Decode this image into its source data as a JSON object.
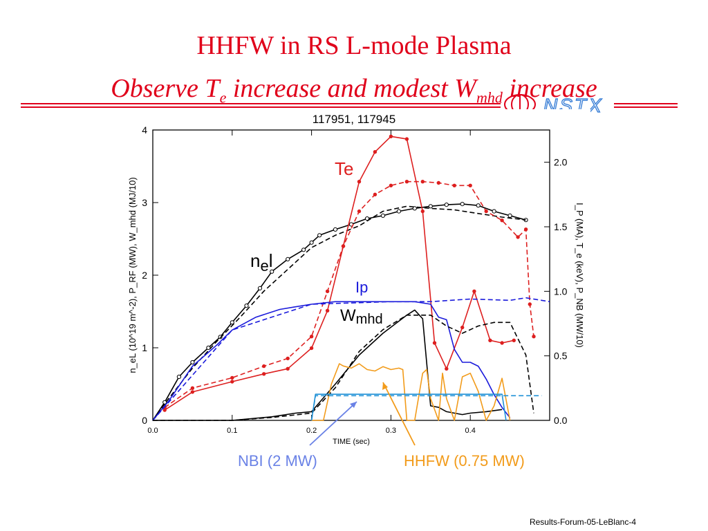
{
  "slide": {
    "title": "HHFW in RS L-mode Plasma",
    "subtitle_main": "Observe T",
    "subtitle_sub_e": "e",
    "subtitle_mid": " increase and modest W",
    "subtitle_sub_mhd": "mhd",
    "subtitle_end": " increase",
    "footer": "Results-Forum-05-LeBlanc-4",
    "logo_text": "NSTX"
  },
  "colors": {
    "title": "#e0001a",
    "ne": "#000000",
    "te": "#dd1f1f",
    "ip": "#1a1adb",
    "wmhd": "#000000",
    "hhfw": "#f29b1a",
    "nbi": "#1e90d6",
    "logo": "#3a7fd6"
  },
  "chart_data": {
    "type": "line",
    "title": "117951, 117945",
    "xlabel": "TIME (sec)",
    "xlim": [
      0.0,
      0.5
    ],
    "x_ticks": [
      "0.0",
      "0.1",
      "0.2",
      "0.3",
      "0.4"
    ],
    "left_ylim": [
      0,
      4
    ],
    "left_ticks": [
      "0",
      "1",
      "2",
      "3",
      "4"
    ],
    "left_ylabel": "n_eL (10^19 m^-2), P_RF (MW), W_mhd (MJ/10)",
    "right_ylim": [
      0.0,
      2.25
    ],
    "right_ticks": [
      "0.0",
      "0.5",
      "1.0",
      "1.5",
      "2.0"
    ],
    "right_ylabel": "I_P (MA), T_e (keV), P_NB (MW/10)",
    "grid": false,
    "labels": {
      "te": "Te",
      "ne_main": "n",
      "ne_sub": "e",
      "ne_end": "l",
      "ip": "Ip",
      "wmhd_main": "W",
      "wmhd_sub": "mhd",
      "nbi": "NBI (2 MW)",
      "hhfw": "HHFW (0.75 MW)"
    },
    "series": [
      {
        "name": "ne l (117951)",
        "axis": "left",
        "color": "#000000",
        "dash": false,
        "markers": "open-circle",
        "x": [
          0.0,
          0.015,
          0.033,
          0.05,
          0.07,
          0.085,
          0.1,
          0.118,
          0.135,
          0.15,
          0.17,
          0.19,
          0.2,
          0.21,
          0.23,
          0.25,
          0.27,
          0.29,
          0.31,
          0.33,
          0.35,
          0.37,
          0.39,
          0.41,
          0.43,
          0.45,
          0.47
        ],
        "y": [
          0.0,
          0.25,
          0.6,
          0.8,
          1.0,
          1.15,
          1.35,
          1.58,
          1.82,
          2.05,
          2.22,
          2.35,
          2.45,
          2.55,
          2.63,
          2.7,
          2.78,
          2.82,
          2.88,
          2.92,
          2.95,
          2.97,
          2.98,
          2.96,
          2.88,
          2.82,
          2.76
        ]
      },
      {
        "name": "ne l (117945)",
        "axis": "left",
        "color": "#000000",
        "dash": true,
        "markers": "none",
        "x": [
          0.0,
          0.02,
          0.05,
          0.08,
          0.11,
          0.14,
          0.17,
          0.2,
          0.23,
          0.26,
          0.29,
          0.32,
          0.35,
          0.38,
          0.41,
          0.44,
          0.47
        ],
        "y": [
          0.0,
          0.3,
          0.72,
          1.08,
          1.42,
          1.78,
          2.08,
          2.38,
          2.55,
          2.68,
          2.88,
          2.95,
          2.92,
          2.9,
          2.85,
          2.8,
          2.76
        ]
      },
      {
        "name": "Te (117951)",
        "axis": "right",
        "color": "#dd1f1f",
        "dash": false,
        "markers": "filled-dot",
        "x": [
          0.015,
          0.05,
          0.1,
          0.14,
          0.17,
          0.2,
          0.22,
          0.24,
          0.26,
          0.28,
          0.3,
          0.32,
          0.34,
          0.355,
          0.37,
          0.39,
          0.405,
          0.425,
          0.44,
          0.455
        ],
        "y": [
          0.08,
          0.22,
          0.3,
          0.36,
          0.4,
          0.56,
          0.85,
          1.35,
          1.85,
          2.08,
          2.2,
          2.18,
          1.62,
          0.6,
          0.4,
          0.72,
          1.0,
          0.62,
          0.6,
          0.62
        ]
      },
      {
        "name": "Te (117945)",
        "axis": "right",
        "color": "#dd1f1f",
        "dash": true,
        "markers": "filled-dot",
        "x": [
          0.015,
          0.05,
          0.1,
          0.14,
          0.17,
          0.2,
          0.22,
          0.24,
          0.26,
          0.28,
          0.3,
          0.32,
          0.34,
          0.36,
          0.38,
          0.4,
          0.42,
          0.44,
          0.46,
          0.47,
          0.475,
          0.48
        ],
        "y": [
          0.1,
          0.25,
          0.33,
          0.42,
          0.48,
          0.65,
          1.0,
          1.35,
          1.62,
          1.75,
          1.82,
          1.85,
          1.85,
          1.84,
          1.82,
          1.82,
          1.62,
          1.55,
          1.42,
          1.48,
          0.9,
          0.65
        ]
      },
      {
        "name": "Ip (117951)",
        "axis": "right",
        "color": "#1a1adb",
        "dash": false,
        "markers": "none",
        "x": [
          0.0,
          0.02,
          0.05,
          0.08,
          0.1,
          0.13,
          0.16,
          0.18,
          0.2,
          0.23,
          0.26,
          0.3,
          0.33,
          0.35,
          0.36,
          0.37,
          0.38,
          0.39,
          0.4,
          0.41,
          0.42,
          0.43,
          0.44,
          0.45
        ],
        "y": [
          0.0,
          0.15,
          0.42,
          0.58,
          0.7,
          0.8,
          0.86,
          0.88,
          0.9,
          0.92,
          0.92,
          0.92,
          0.92,
          0.9,
          0.8,
          0.78,
          0.55,
          0.45,
          0.45,
          0.42,
          0.32,
          0.2,
          0.1,
          0.02
        ]
      },
      {
        "name": "Ip (117945)",
        "axis": "right",
        "color": "#1a1adb",
        "dash": true,
        "markers": "none",
        "x": [
          0.0,
          0.1,
          0.2,
          0.3,
          0.35,
          0.4,
          0.45,
          0.47,
          0.5
        ],
        "y": [
          0.0,
          0.7,
          0.9,
          0.92,
          0.92,
          0.94,
          0.93,
          0.95,
          0.92
        ]
      },
      {
        "name": "Wmhd (117951)",
        "axis": "left",
        "color": "#000000",
        "dash": false,
        "markers": "none",
        "x": [
          0.0,
          0.05,
          0.1,
          0.15,
          0.18,
          0.2,
          0.23,
          0.26,
          0.29,
          0.32,
          0.33,
          0.34,
          0.35,
          0.36,
          0.37,
          0.38,
          0.39,
          0.4,
          0.42,
          0.44
        ],
        "y": [
          0.0,
          0.0,
          0.0,
          0.05,
          0.1,
          0.12,
          0.5,
          0.9,
          1.2,
          1.45,
          1.52,
          1.4,
          0.2,
          0.18,
          0.12,
          0.1,
          0.08,
          0.1,
          0.12,
          0.15
        ]
      },
      {
        "name": "Wmhd (117945)",
        "axis": "left",
        "color": "#000000",
        "dash": true,
        "markers": "none",
        "x": [
          0.0,
          0.1,
          0.15,
          0.2,
          0.23,
          0.26,
          0.29,
          0.32,
          0.35,
          0.37,
          0.39,
          0.41,
          0.43,
          0.45,
          0.47,
          0.48
        ],
        "y": [
          0.0,
          0.0,
          0.04,
          0.1,
          0.45,
          0.95,
          1.25,
          1.45,
          1.45,
          1.3,
          1.2,
          1.3,
          1.35,
          1.35,
          0.9,
          0.1
        ]
      },
      {
        "name": "HHFW (117951)",
        "axis": "left",
        "color": "#f29b1a",
        "dash": false,
        "markers": "none",
        "x": [
          0.2,
          0.215,
          0.225,
          0.235,
          0.24,
          0.25,
          0.26,
          0.27,
          0.28,
          0.29,
          0.3,
          0.31,
          0.315,
          0.32,
          0.33,
          0.34,
          0.345,
          0.35,
          0.36,
          0.365,
          0.37,
          0.38,
          0.39,
          0.4,
          0.41,
          0.42,
          0.43,
          0.44,
          0.45
        ],
        "y": [
          0.0,
          0.0,
          0.5,
          0.78,
          0.75,
          0.72,
          0.78,
          0.7,
          0.68,
          0.74,
          0.7,
          0.72,
          0.7,
          0.0,
          0.0,
          0.65,
          0.7,
          0.3,
          0.0,
          0.65,
          0.3,
          0.0,
          0.6,
          0.65,
          0.4,
          0.0,
          0.2,
          0.58,
          0.0
        ]
      },
      {
        "name": "NBI (117951)",
        "axis": "left",
        "color": "#1e90d6",
        "dash": false,
        "markers": "none",
        "x": [
          0.2,
          0.205,
          0.44,
          0.445
        ],
        "y": [
          0.0,
          0.36,
          0.36,
          0.0
        ]
      },
      {
        "name": "NBI (117945)",
        "axis": "left",
        "color": "#1e90d6",
        "dash": true,
        "markers": "none",
        "x": [
          0.2,
          0.205,
          0.49
        ],
        "y": [
          0.0,
          0.34,
          0.34
        ]
      }
    ]
  }
}
